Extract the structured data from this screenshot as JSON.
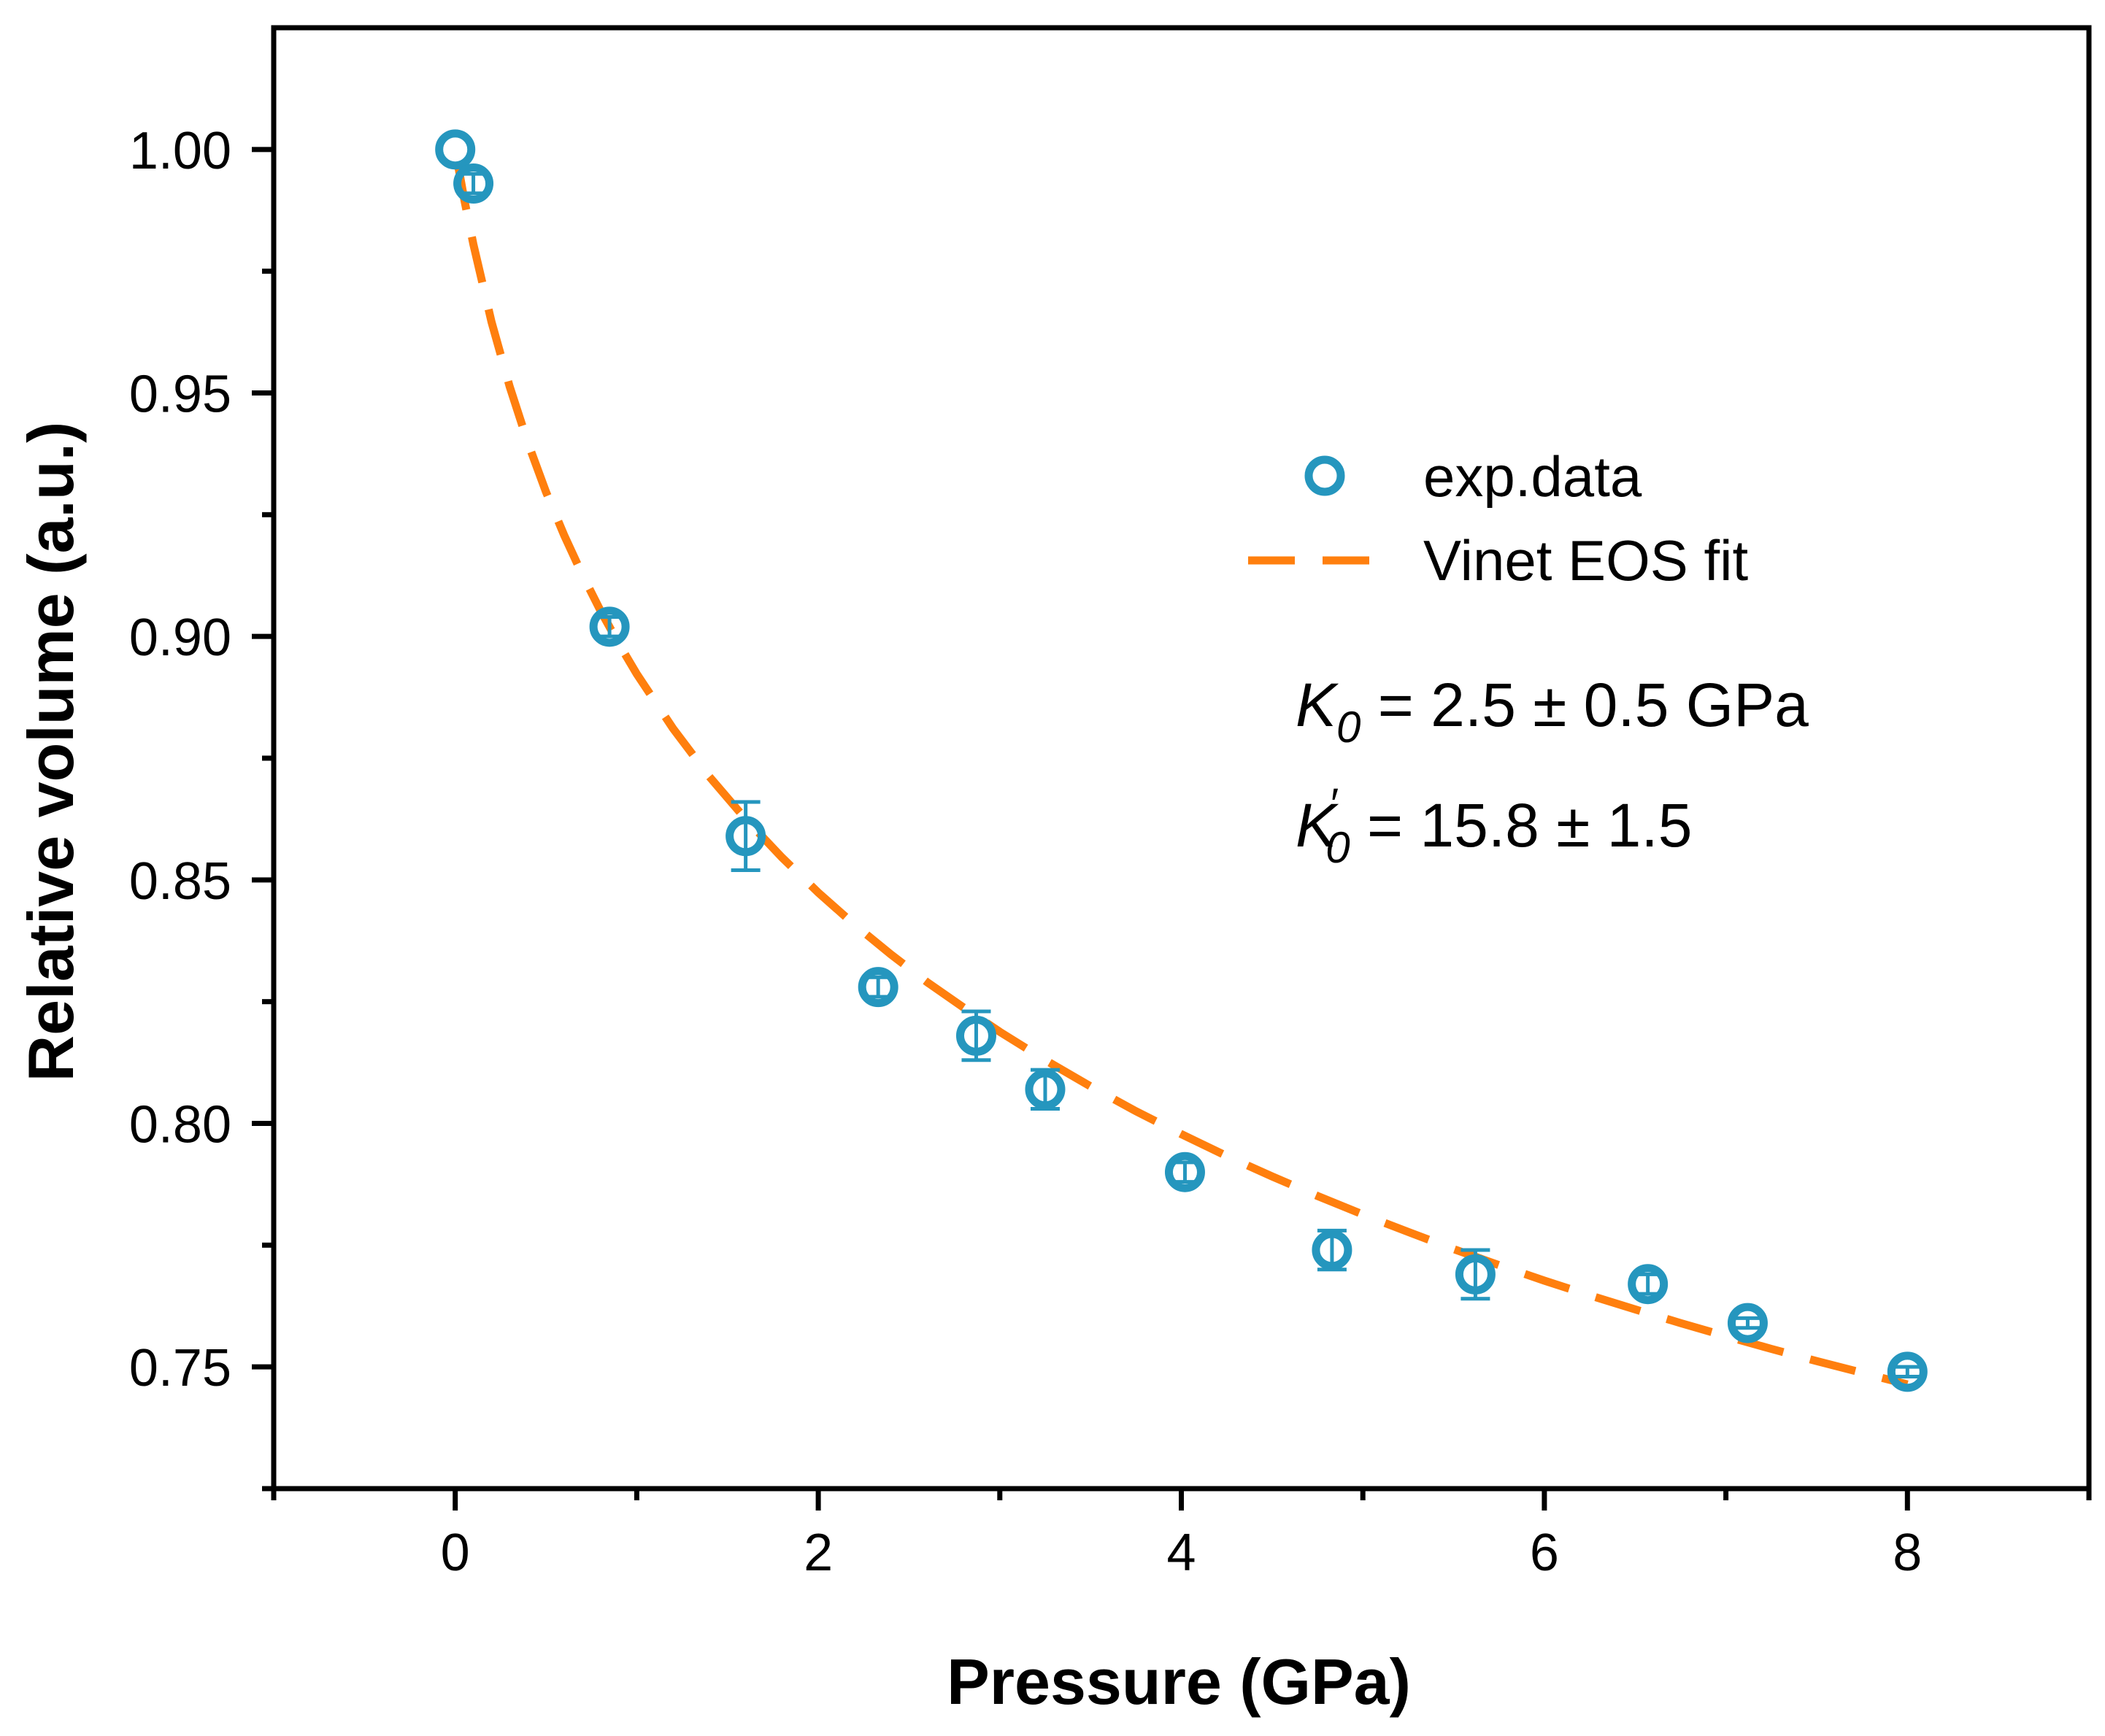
{
  "chart_data": {
    "type": "scatter",
    "title": "",
    "xlabel": "Pressure (GPa)",
    "ylabel": "Relative volume (a.u.)",
    "xlim": [
      -1,
      9
    ],
    "ylim": [
      0.725,
      1.025
    ],
    "x_ticks": [
      0,
      2,
      4,
      6,
      8
    ],
    "x_tick_labels": [
      "0",
      "2",
      "4",
      "6",
      "8"
    ],
    "x_minor_ticks": [
      -1,
      1,
      3,
      5,
      7,
      9
    ],
    "y_ticks": [
      0.75,
      0.8,
      0.85,
      0.9,
      0.95,
      1.0
    ],
    "y_tick_labels": [
      "0.75",
      "0.80",
      "0.85",
      "0.90",
      "0.95",
      "1.00"
    ],
    "y_minor_ticks": [
      0.725,
      0.775,
      0.825,
      0.875,
      0.925,
      0.975
    ],
    "grid": false,
    "legend_position": "upper-right",
    "series": [
      {
        "name": "exp.data",
        "kind": "points",
        "color": "#2596BE",
        "x": [
          0.0,
          0.1,
          0.85,
          1.6,
          2.33,
          2.87,
          3.25,
          4.02,
          4.83,
          5.62,
          6.57,
          7.12,
          8.0
        ],
        "y": [
          1.0,
          0.993,
          0.902,
          0.859,
          0.828,
          0.818,
          0.807,
          0.79,
          0.774,
          0.769,
          0.767,
          0.759,
          0.749
        ],
        "err": [
          0.0,
          0.002,
          0.002,
          0.007,
          0.002,
          0.005,
          0.004,
          0.002,
          0.004,
          0.005,
          0.002,
          0.001,
          0.001
        ]
      },
      {
        "name": "Vinet EOS fit",
        "kind": "fit",
        "color": "#FF7F0E",
        "line_style": "dashed",
        "x": [
          0.0,
          0.05,
          0.1,
          0.2,
          0.3,
          0.4,
          0.5,
          0.6,
          0.7,
          0.8,
          0.9,
          1.0,
          1.2,
          1.4,
          1.6,
          1.8,
          2.0,
          2.2,
          2.4,
          2.6,
          2.8,
          3.0,
          3.25,
          3.5,
          3.75,
          4.0,
          4.25,
          4.5,
          4.75,
          5.0,
          5.25,
          5.5,
          5.75,
          6.0,
          6.25,
          6.5,
          6.75,
          7.0,
          7.25,
          7.5,
          7.75,
          8.0
        ],
        "y": [
          1.0,
          0.9897,
          0.9805,
          0.9646,
          0.9513,
          0.9398,
          0.9297,
          0.9208,
          0.9127,
          0.9053,
          0.8986,
          0.8923,
          0.8811,
          0.8712,
          0.8625,
          0.8546,
          0.8474,
          0.8408,
          0.8347,
          0.829,
          0.8238,
          0.8188,
          0.813,
          0.8076,
          0.8025,
          0.7978,
          0.7933,
          0.7891,
          0.7851,
          0.7813,
          0.7777,
          0.7742,
          0.7709,
          0.7677,
          0.7647,
          0.7618,
          0.759,
          0.7563,
          0.7537,
          0.7512,
          0.7488,
          0.7464
        ]
      }
    ],
    "legend": [
      {
        "label": "exp.data",
        "marker": "circle"
      },
      {
        "label": "Vinet EOS fit",
        "marker": "dashed-line"
      }
    ],
    "annotations": {
      "k0": {
        "symbol": "K",
        "subscript": "0",
        "rest": " = 2.5 ± 0.5 GPa"
      },
      "k0_prime": {
        "symbol": "K",
        "prime": "′",
        "subscript": "0",
        "rest": " = 15.8 ± 1.5"
      }
    }
  }
}
